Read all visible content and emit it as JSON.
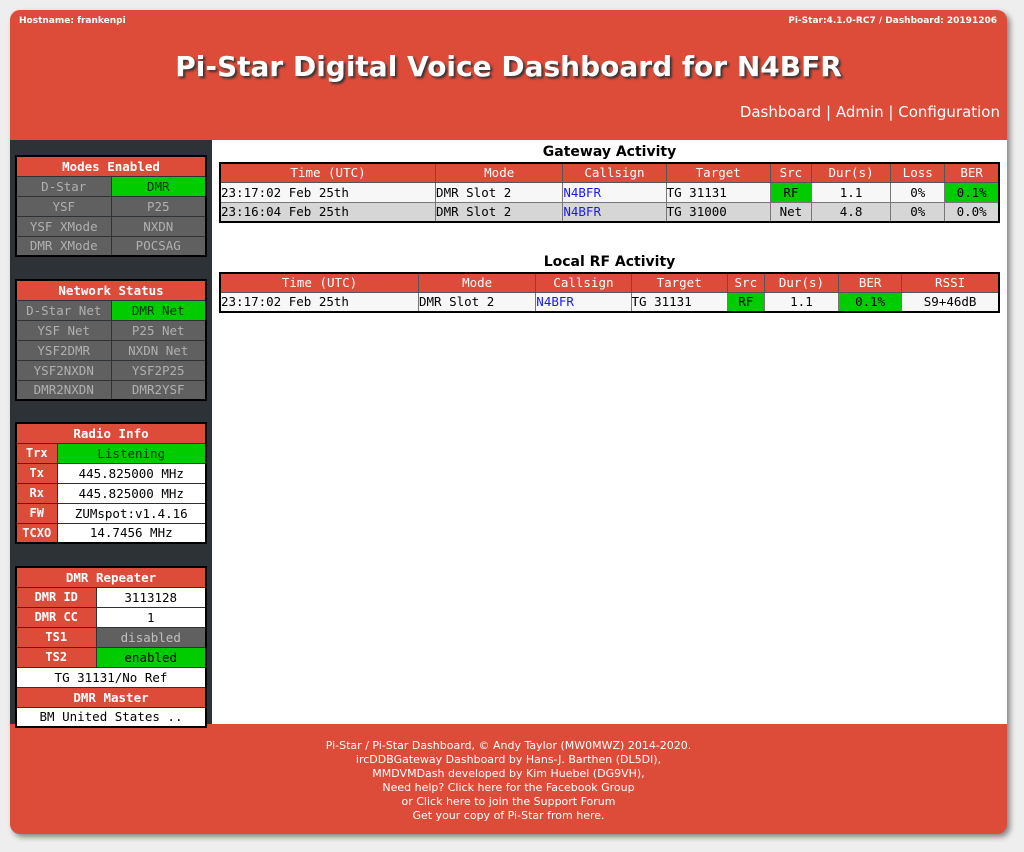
{
  "header": {
    "hostname": "Hostname: frankenpi",
    "version": "Pi-Star:4.1.0-RC7 / Dashboard: 20191206",
    "title": "Pi-Star Digital Voice Dashboard for N4BFR",
    "nav": {
      "dashboard": "Dashboard",
      "admin": "Admin",
      "configuration": "Configuration",
      "sep": "|"
    }
  },
  "modes": {
    "title": "Modes Enabled",
    "rows": [
      [
        {
          "label": "D-Star",
          "active": false
        },
        {
          "label": "DMR",
          "active": true
        }
      ],
      [
        {
          "label": "YSF",
          "active": false
        },
        {
          "label": "P25",
          "active": false
        }
      ],
      [
        {
          "label": "YSF XMode",
          "active": false
        },
        {
          "label": "NXDN",
          "active": false
        }
      ],
      [
        {
          "label": "DMR XMode",
          "active": false
        },
        {
          "label": "POCSAG",
          "active": false
        }
      ]
    ]
  },
  "network": {
    "title": "Network Status",
    "rows": [
      [
        {
          "label": "D-Star Net",
          "active": false
        },
        {
          "label": "DMR Net",
          "active": true
        }
      ],
      [
        {
          "label": "YSF Net",
          "active": false
        },
        {
          "label": "P25 Net",
          "active": false
        }
      ],
      [
        {
          "label": "YSF2DMR",
          "active": false
        },
        {
          "label": "NXDN Net",
          "active": false
        }
      ],
      [
        {
          "label": "YSF2NXDN",
          "active": false
        },
        {
          "label": "YSF2P25",
          "active": false
        }
      ],
      [
        {
          "label": "DMR2NXDN",
          "active": false
        },
        {
          "label": "DMR2YSF",
          "active": false
        }
      ]
    ]
  },
  "radio": {
    "title": "Radio Info",
    "trx_label": "Trx",
    "trx_value": "Listening",
    "tx_label": "Tx",
    "tx_value": "445.825000 MHz",
    "rx_label": "Rx",
    "rx_value": "445.825000 MHz",
    "fw_label": "FW",
    "fw_value": "ZUMspot:v1.4.16",
    "tcxo_label": "TCXO",
    "tcxo_value": "14.7456 MHz"
  },
  "dmr": {
    "title": "DMR Repeater",
    "id_label": "DMR ID",
    "id_value": "3113128",
    "cc_label": "DMR CC",
    "cc_value": "1",
    "ts1_label": "TS1",
    "ts1_value": "disabled",
    "ts2_label": "TS2",
    "ts2_value": "enabled",
    "tg": "TG 31131/No Ref",
    "master_title": "DMR Master",
    "master_value": "BM United States .."
  },
  "gateway": {
    "title": "Gateway Activity",
    "headers": [
      "Time (UTC)",
      "Mode",
      "Callsign",
      "Target",
      "Src",
      "Dur(s)",
      "Loss",
      "BER"
    ],
    "rows": [
      [
        "23:17:02 Feb 25th",
        "DMR Slot 2",
        "N4BFR",
        "TG 31131",
        "RF",
        "1.1",
        "0%",
        "0.1%"
      ],
      [
        "23:16:04 Feb 25th",
        "DMR Slot 2",
        "N4BFR",
        "TG 31000",
        "Net",
        "4.8",
        "0%",
        "0.0%"
      ]
    ]
  },
  "local": {
    "title": "Local RF Activity",
    "headers": [
      "Time (UTC)",
      "Mode",
      "Callsign",
      "Target",
      "Src",
      "Dur(s)",
      "BER",
      "RSSI"
    ],
    "rows": [
      [
        "23:17:02 Feb 25th",
        "DMR Slot 2",
        "N4BFR",
        "TG 31131",
        "RF",
        "1.1",
        "0.1%",
        "S9+46dB"
      ]
    ]
  },
  "footer": {
    "line1": "Pi-Star / Pi-Star Dashboard, © Andy Taylor (MW0MWZ) 2014-2020.",
    "line2": "ircDDBGateway Dashboard by Hans-J. Barthen (DL5DI),",
    "line3": "MMDVMDash developed by Kim Huebel (DG9VH),",
    "line4": "Need help? Click here for the Facebook Group",
    "line5": "or Click here to join the Support Forum",
    "line6": "Get your copy of Pi-Star from here."
  },
  "colors": {
    "brand": "#dd4b39",
    "active": "#00cc00",
    "inactive": "#606060",
    "sidebar": "#2c3235"
  }
}
